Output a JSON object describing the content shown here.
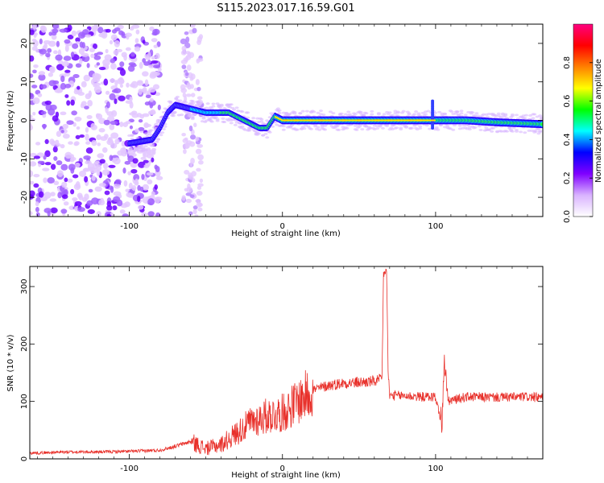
{
  "figure": {
    "title": "S115.2023.017.16.59.G01"
  },
  "chart_data": [
    {
      "type": "heatmap",
      "xlabel": "Height of straight line (km)",
      "ylabel": "Frequency (Hz)",
      "xlim": [
        -165,
        170
      ],
      "ylim": [
        -25,
        25
      ],
      "xticks": [
        -100,
        0,
        100
      ],
      "xticklabels": [
        "-100",
        "0",
        "100"
      ],
      "yticks": [
        -20,
        -10,
        0,
        10,
        20
      ],
      "yticklabels": [
        "-20",
        "-10",
        "0",
        "10",
        "20"
      ],
      "colorbar": {
        "label": "Normalized spectral amplitude",
        "range": [
          0.0,
          1.0
        ],
        "ticks": [
          0.0,
          0.2,
          0.4,
          0.6,
          0.8
        ],
        "ticklabels": [
          "0.0",
          "0.2",
          "0.4",
          "0.6",
          "0.8"
        ],
        "colormap": [
          "#ffffff",
          "#d9b3ff",
          "#8000ff",
          "#0000ff",
          "#00ffff",
          "#00ff00",
          "#ffff00",
          "#ff8000",
          "#ff0000",
          "#ff0080"
        ]
      },
      "ridge": {
        "x": [
          -100,
          -85,
          -80,
          -75,
          -70,
          -60,
          -50,
          -45,
          -40,
          -35,
          -30,
          -25,
          -20,
          -15,
          -10,
          -5,
          0,
          20,
          40,
          60,
          80,
          95,
          100,
          120,
          140,
          170
        ],
        "y": [
          -6,
          -5,
          -2,
          2,
          4,
          3,
          2,
          2,
          2,
          2,
          1,
          0,
          -1,
          -2,
          -2,
          1,
          0,
          0,
          0,
          0,
          0,
          0,
          0,
          0,
          -0.5,
          -1
        ]
      },
      "noise_region_x": [
        -165,
        -80
      ],
      "grid": false
    },
    {
      "type": "line",
      "xlabel": "Height of straight line (km)",
      "ylabel": "SNR (10 * v/v)",
      "xlim": [
        -165,
        170
      ],
      "ylim": [
        0,
        335
      ],
      "xticks": [
        -100,
        0,
        100
      ],
      "xticklabels": [
        "-100",
        "0",
        "100"
      ],
      "yticks": [
        0,
        100,
        200,
        300
      ],
      "yticklabels": [
        "0",
        "100",
        "200",
        "300"
      ],
      "color": "#e8302a",
      "series": [
        {
          "x": [
            -165,
            -140,
            -120,
            -100,
            -80,
            -70,
            -60,
            -50,
            -40,
            -30,
            -20,
            -10,
            0,
            10,
            20,
            30,
            40,
            50,
            60,
            65,
            66,
            68,
            69,
            70,
            75,
            80,
            90,
            100,
            104,
            106,
            108,
            120,
            140,
            160,
            170
          ],
          "y": [
            10,
            12,
            12,
            13,
            15,
            22,
            30,
            18,
            25,
            45,
            65,
            75,
            80,
            100,
            120,
            128,
            132,
            133,
            135,
            138,
            320,
            330,
            150,
            110,
            110,
            110,
            108,
            108,
            60,
            170,
            100,
            108,
            107,
            108,
            106
          ]
        }
      ],
      "grid": false
    }
  ]
}
